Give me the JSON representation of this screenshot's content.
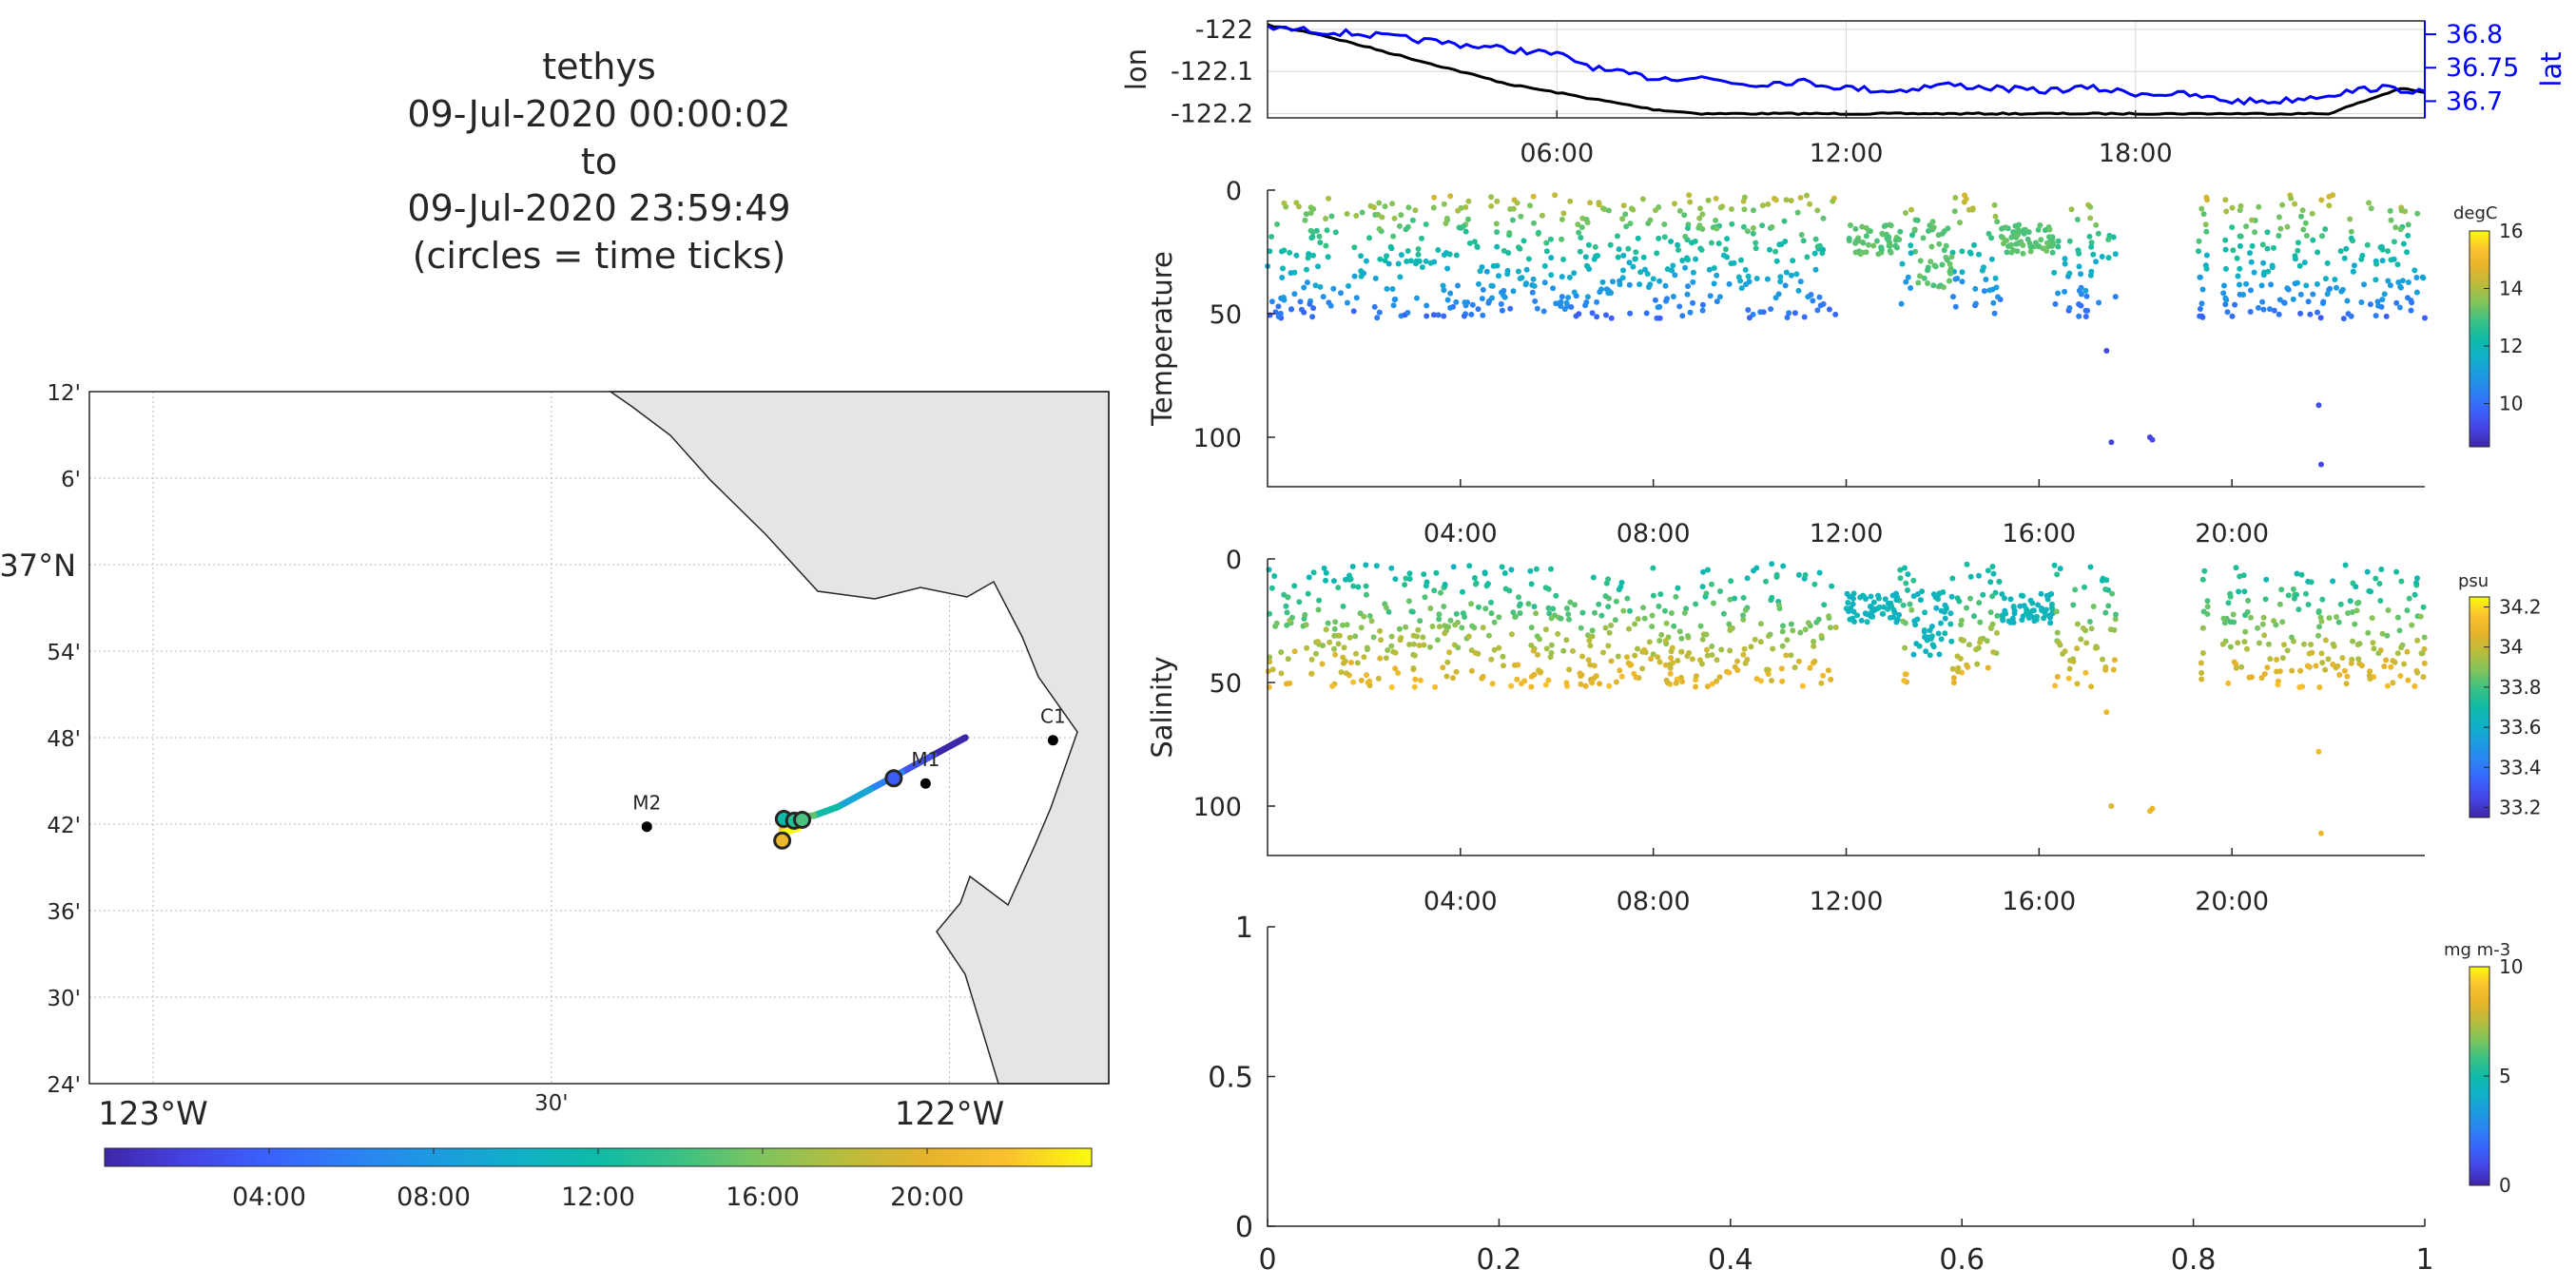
{
  "title_lines": [
    "tethys",
    "09-Jul-2020 00:00:02",
    "to",
    "09-Jul-2020 23:59:49",
    "(circles = time ticks)"
  ],
  "colors": {
    "parula": [
      "#3e26a8",
      "#4543e3",
      "#3a62fd",
      "#2c81f4",
      "#1c9ae1",
      "#10b0c8",
      "#0fbba6",
      "#3ac184",
      "#80c45c",
      "#b9bc3c",
      "#e6b32b",
      "#fbc22e",
      "#f9fb0e"
    ],
    "lon_line": "#000000",
    "lat_line": "#0000ff",
    "land": "#e5e5e5",
    "grid": "#cccccc"
  },
  "map": {
    "lat_tick_labels": [
      "12'",
      "6'",
      "37°N",
      "54'",
      "48'",
      "42'",
      "36'",
      "30'",
      "24'"
    ],
    "lon_tick_labels": [
      "123°W",
      "30'",
      "122°W"
    ],
    "stations": [
      {
        "name": "C1",
        "lon": -121.87,
        "lat": 36.797
      },
      {
        "name": "M1",
        "lon": -122.03,
        "lat": 36.747
      },
      {
        "name": "M2",
        "lon": -122.38,
        "lat": 36.697
      }
    ],
    "colorbar_ticks": [
      "04:00",
      "08:00",
      "12:00",
      "16:00",
      "20:00"
    ]
  },
  "timeseries": {
    "x_ticks": [
      "06:00",
      "12:00",
      "18:00"
    ],
    "lon_label": "lon",
    "lat_label": "lat",
    "lon_ticks": [
      "-122",
      "-122.1",
      "-122.2"
    ],
    "lat_ticks": [
      "36.8",
      "36.75",
      "36.7"
    ],
    "lon_ylim": [
      -122.21,
      -121.98
    ],
    "lat_ylim": [
      36.675,
      36.82
    ],
    "lon_points": [
      [
        0,
        -121.99
      ],
      [
        1,
        -122.01
      ],
      [
        2,
        -122.04
      ],
      [
        3,
        -122.07
      ],
      [
        4,
        -122.1
      ],
      [
        5,
        -122.13
      ],
      [
        6,
        -122.15
      ],
      [
        7,
        -122.17
      ],
      [
        8,
        -122.19
      ],
      [
        9,
        -122.2
      ],
      [
        10,
        -122.2
      ],
      [
        12,
        -122.2
      ],
      [
        14,
        -122.2
      ],
      [
        16,
        -122.2
      ],
      [
        18,
        -122.2
      ],
      [
        20,
        -122.2
      ],
      [
        22,
        -122.2
      ],
      [
        23,
        -122.16
      ],
      [
        23.5,
        -122.14
      ],
      [
        24,
        -122.15
      ]
    ],
    "lat_points": [
      [
        0,
        36.81
      ],
      [
        2,
        36.8
      ],
      [
        4,
        36.785
      ],
      [
        6,
        36.77
      ],
      [
        7,
        36.745
      ],
      [
        8,
        36.735
      ],
      [
        9,
        36.735
      ],
      [
        10,
        36.725
      ],
      [
        11,
        36.73
      ],
      [
        12,
        36.72
      ],
      [
        13,
        36.715
      ],
      [
        14,
        36.725
      ],
      [
        15,
        36.72
      ],
      [
        16,
        36.715
      ],
      [
        17,
        36.72
      ],
      [
        18,
        36.712
      ],
      [
        19,
        36.71
      ],
      [
        20,
        36.7
      ],
      [
        21,
        36.7
      ],
      [
        22,
        36.71
      ],
      [
        23,
        36.72
      ],
      [
        24,
        36.715
      ]
    ]
  },
  "temperature": {
    "ylabel": "Temperature",
    "y_ticks": [
      "0",
      "50",
      "100"
    ],
    "x_ticks": [
      "04:00",
      "08:00",
      "12:00",
      "16:00",
      "20:00"
    ],
    "unit": "degC",
    "cbar_ticks": [
      "16",
      "14",
      "12",
      "10"
    ],
    "clim": [
      8.5,
      16
    ]
  },
  "salinity": {
    "ylabel": "Salinity",
    "y_ticks": [
      "0",
      "50",
      "100"
    ],
    "x_ticks": [
      "04:00",
      "08:00",
      "12:00",
      "16:00",
      "20:00"
    ],
    "unit": "psu",
    "cbar_ticks": [
      "34.2",
      "34",
      "33.8",
      "33.6",
      "33.4",
      "33.2"
    ],
    "clim": [
      33.15,
      34.25
    ]
  },
  "chlorophyll": {
    "unit": "mg m-3",
    "cbar_ticks": [
      "10",
      "5",
      "0"
    ],
    "x_ticks": [
      "0",
      "0.2",
      "0.4",
      "0.6",
      "0.8",
      "1"
    ],
    "y_ticks": [
      "1",
      "0.5",
      "0"
    ]
  },
  "chart_data": [
    {
      "type": "scatter",
      "title": "tethys 09-Jul-2020 00:00:02 to 09-Jul-2020 23:59:49 (circles = time ticks)",
      "xlabel": "",
      "ylabel": "",
      "xlim": [
        -123.08,
        -121.8
      ],
      "ylim": [
        36.4,
        37.2
      ],
      "series": [
        {
          "name": "track",
          "points": [
            [
              -121.98,
              36.8
            ],
            [
              -122.02,
              36.78
            ],
            [
              -122.06,
              36.76
            ],
            [
              -122.1,
              36.74
            ],
            [
              -122.14,
              36.72
            ],
            [
              -122.17,
              36.71
            ],
            [
              -122.2,
              36.706
            ],
            [
              -122.21,
              36.703
            ],
            [
              -122.21,
              36.69
            ],
            [
              -122.19,
              36.695
            ]
          ]
        }
      ],
      "stations": [
        "C1",
        "M1",
        "M2"
      ]
    },
    {
      "type": "line",
      "xlabel": "",
      "ylabel": "lon / lat",
      "xlim": [
        0,
        24
      ],
      "series": [
        {
          "name": "lon"
        },
        {
          "name": "lat"
        }
      ]
    },
    {
      "type": "scatter",
      "ylabel": "Temperature",
      "unit": "degC",
      "xlim": [
        0,
        24
      ],
      "ylim": [
        0,
        120
      ],
      "y_reversed": true,
      "clim": [
        8.5,
        16
      ]
    },
    {
      "type": "scatter",
      "ylabel": "Salinity",
      "unit": "psu",
      "xlim": [
        0,
        24
      ],
      "ylim": [
        0,
        120
      ],
      "y_reversed": true,
      "clim": [
        33.15,
        34.25
      ]
    },
    {
      "type": "scatter",
      "unit": "mg m-3",
      "xlim": [
        0,
        1
      ],
      "ylim": [
        0,
        1
      ],
      "clim": [
        0,
        10
      ]
    }
  ]
}
